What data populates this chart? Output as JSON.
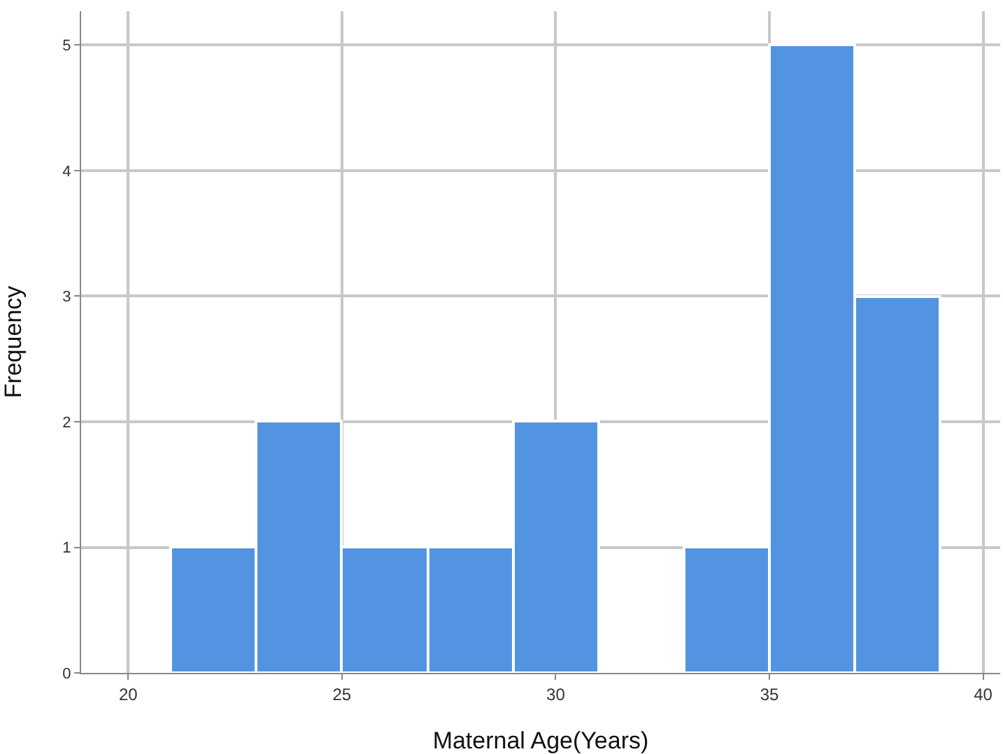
{
  "chart_data": {
    "type": "histogram",
    "xlabel": "Maternal Age(Years)",
    "ylabel": "Frequency",
    "bins": [
      21,
      23,
      25,
      27,
      29,
      31,
      33,
      35,
      37,
      39
    ],
    "values": [
      1,
      2,
      1,
      1,
      2,
      0,
      1,
      5,
      3
    ],
    "color": "#5294e2",
    "xlim": [
      18.9,
      40.4
    ],
    "xticks": [
      20,
      25,
      30,
      35,
      40
    ],
    "ylim": [
      0,
      5.27
    ],
    "yticks": [
      0,
      1,
      2,
      3,
      4,
      5
    ],
    "grid": true
  }
}
